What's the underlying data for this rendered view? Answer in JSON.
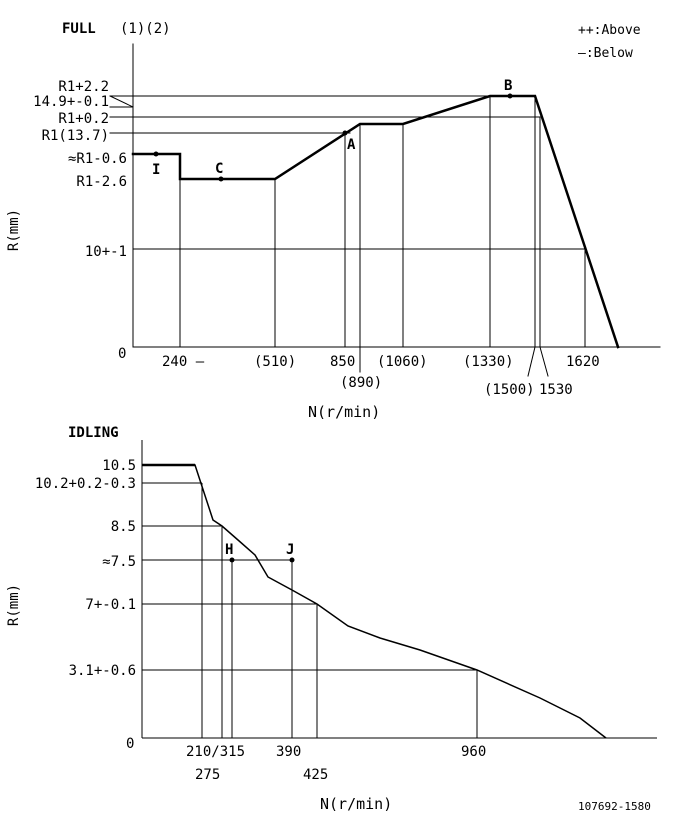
{
  "full": {
    "title": "FULL",
    "subtitle": "(1)(2)",
    "legend": [
      "++:Above",
      "—:Below"
    ],
    "y_axis_label": "R(mm)",
    "x_axis_label": "N(r/min)",
    "origin_label": "0",
    "y_ticks": [
      "R1+2.2",
      "14.9+-0.1",
      "R1+0.2",
      "R1(13.7)",
      "≈R1-0.6",
      "R1-2.6",
      "10+-1"
    ],
    "x_ticks": [
      "240 —",
      "(510)",
      "850",
      "(890)",
      "(1060)",
      "(1330)",
      "(1500)",
      "1530",
      "1620"
    ],
    "points": [
      "I",
      "C",
      "A",
      "B"
    ]
  },
  "idling": {
    "title": "IDLING",
    "y_axis_label": "R(mm)",
    "x_axis_label": "N(r/min)",
    "origin_label": "0",
    "y_ticks": [
      "10.5",
      "10.2+0.2-0.3",
      "8.5",
      "≈7.5",
      "7+-0.1",
      "3.1+-0.6"
    ],
    "x_ticks": [
      "210/315",
      "275",
      "390",
      "425",
      "960"
    ],
    "points": [
      "H",
      "J"
    ]
  },
  "drawing_number": "107692-1580"
}
